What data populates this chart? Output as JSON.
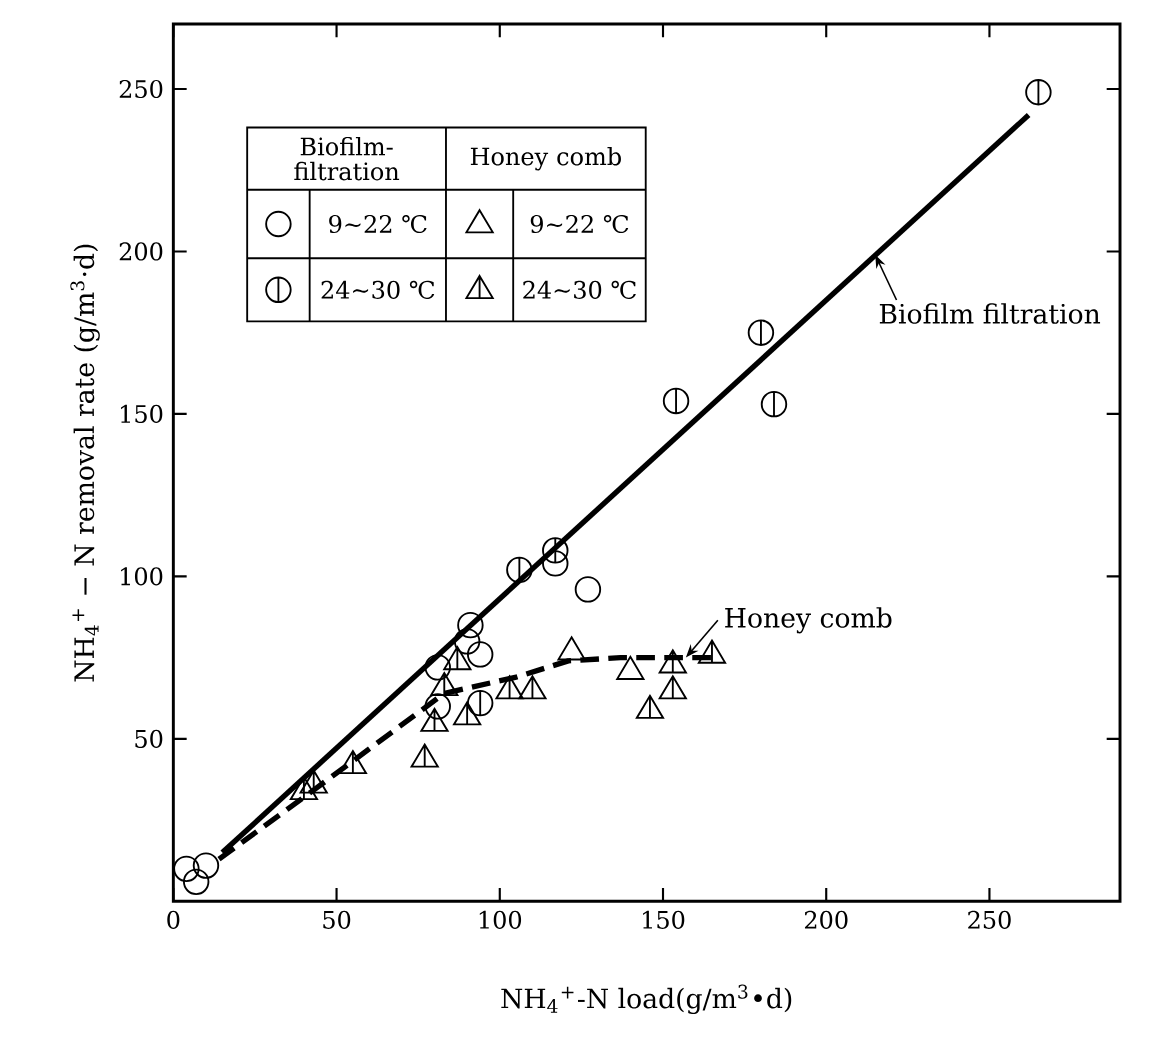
{
  "chart_data": {
    "type": "scatter",
    "xlabel": "NH$_{4}$$^{+}$-N load(g/m$^{3}$•d)",
    "ylabel": "NH$_{4}$$^{+}$ − N removal rate (g/m$^{3}$·d)",
    "xlim": [
      0,
      290
    ],
    "ylim": [
      0,
      270
    ],
    "xticks": [
      0,
      50,
      100,
      150,
      200,
      250
    ],
    "yticks": [
      50,
      100,
      150,
      200,
      250
    ],
    "grid": false,
    "legend": "top left",
    "annotations": [
      "Biofilm-filtration",
      "Honey comb",
      {
        "text": "Biofilm filtration",
        "x": 215,
        "y": 199
      },
      {
        "text": "Honey comb",
        "x": 157,
        "y": 75
      }
    ],
    "series": [
      {
        "name": "9~22 ℃",
        "marker": "circle",
        "color": "#000000",
        "x": [
          4,
          7,
          10,
          81,
          81,
          91,
          90,
          94,
          117,
          127
        ],
        "values": [
          10,
          6,
          11,
          72,
          60,
          85,
          80,
          76,
          104,
          96
        ]
      },
      {
        "name": "24~30 ℃",
        "color": "#000000",
        "x": [
          106,
          117,
          94,
          154,
          184,
          180,
          265
        ],
        "values": [
          102,
          108,
          61,
          154,
          153,
          175,
          249
        ]
      },
      {
        "name": "9~22 ℃",
        "marker": "triangle",
        "color": "#000000",
        "x": [
          122,
          140
        ],
        "values": [
          77,
          71
        ]
      },
      {
        "name": "24~30 ℃",
        "color": "#000000",
        "x": [
          153,
          153,
          146,
          165,
          110,
          103,
          90,
          80,
          83,
          87,
          77,
          55,
          43,
          40
        ],
        "values": [
          73,
          65,
          59,
          76,
          65,
          65,
          57,
          55,
          66,
          74,
          44,
          42,
          36,
          34
        ]
      },
      {
        "type": "line",
        "line_style": "solid",
        "marker": "none",
        "color": "#000000",
        "x": [
          15,
          262
        ],
        "values": [
          15,
          242
        ]
      },
      {
        "type": "line",
        "line_style": "dashed",
        "marker": "none",
        "color": "#000000",
        "x": [
          14,
          44,
          83,
          105,
          121,
          137,
          166
        ],
        "values": [
          13,
          35,
          64,
          69,
          74,
          75,
          75
        ]
      }
    ]
  }
}
